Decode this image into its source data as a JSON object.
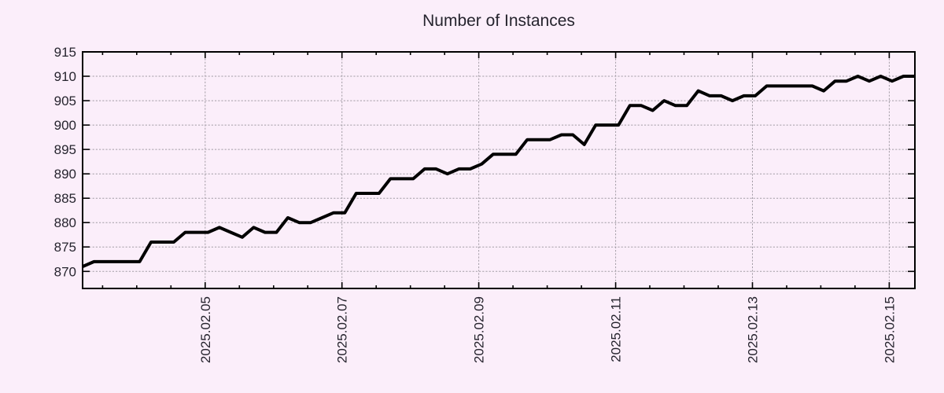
{
  "chart_data": {
    "type": "line",
    "title": "Number of Instances",
    "xlabel": "",
    "ylabel": "",
    "legend": "none",
    "grid": "dotted",
    "x_start": "2025-02-03 05:00",
    "x_interval_hours": 4,
    "x_total_hours": 292,
    "x_ticks": [
      {
        "hour": 43,
        "label": "2025.02.05"
      },
      {
        "hour": 91,
        "label": "2025.02.07"
      },
      {
        "hour": 139,
        "label": "2025.02.09"
      },
      {
        "hour": 187,
        "label": "2025.02.11"
      },
      {
        "hour": 235,
        "label": "2025.02.13"
      },
      {
        "hour": 283,
        "label": "2025.02.15"
      }
    ],
    "x_minor_tick_start_hour": 7,
    "x_minor_tick_every_hours": 12,
    "y_ticks": [
      915,
      910,
      905,
      900,
      895,
      890,
      885,
      880,
      875,
      870
    ],
    "y_gridlines": [
      910,
      905,
      900,
      895,
      890,
      885,
      880,
      875,
      870
    ],
    "ylim": [
      866.5,
      915
    ],
    "values": [
      871,
      872,
      872,
      872,
      872,
      872,
      876,
      876,
      876,
      878,
      878,
      878,
      879,
      878,
      877,
      879,
      878,
      878,
      881,
      880,
      880,
      881,
      882,
      882,
      886,
      886,
      886,
      889,
      889,
      889,
      891,
      891,
      890,
      891,
      891,
      892,
      894,
      894,
      894,
      897,
      897,
      897,
      898,
      898,
      896,
      900,
      900,
      900,
      904,
      904,
      903,
      905,
      904,
      904,
      907,
      906,
      906,
      905,
      906,
      906,
      908,
      908,
      908,
      908,
      908,
      907,
      909,
      909,
      910,
      909,
      910,
      909,
      910,
      910
    ],
    "colors": {
      "background": "#fbeefa",
      "line": "#000000",
      "frame": "#000000",
      "grid": "#a39da6",
      "text": "#26242e"
    }
  }
}
